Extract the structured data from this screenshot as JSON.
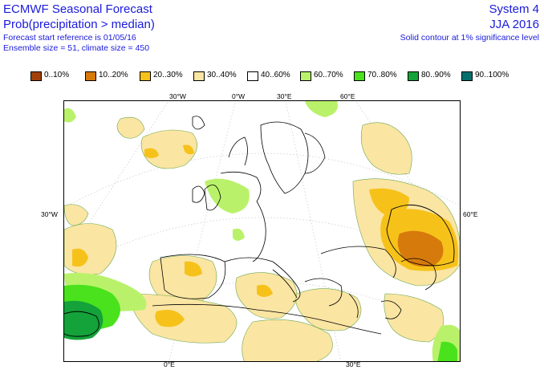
{
  "header": {
    "title": "ECMWF Seasonal Forecast",
    "subtitle": "Prob(precipitation > median)",
    "line1": "Forecast start reference is 01/05/16",
    "line2": "Ensemble size = 51, climate size = 450",
    "system": "System 4",
    "period": "JJA 2016",
    "significance": "Solid contour at 1% significance level"
  },
  "legend": [
    {
      "label": "0..10%",
      "color": "#a0410a"
    },
    {
      "label": "10..20%",
      "color": "#d77a0c"
    },
    {
      "label": "20..30%",
      "color": "#f6c21a"
    },
    {
      "label": "30..40%",
      "color": "#fbe5a3"
    },
    {
      "label": "40..60%",
      "color": "#ffffff"
    },
    {
      "label": "60..70%",
      "color": "#b9f26a"
    },
    {
      "label": "70..80%",
      "color": "#4ae21c"
    },
    {
      "label": "80..90%",
      "color": "#14a23a"
    },
    {
      "label": "90..100%",
      "color": "#06706e"
    }
  ],
  "axes": {
    "top": [
      "30°W",
      "0°W",
      "30°E",
      "60°E"
    ],
    "bottom": [
      "0°E",
      "30°E"
    ],
    "left": "30°W",
    "right": "60°E"
  }
}
